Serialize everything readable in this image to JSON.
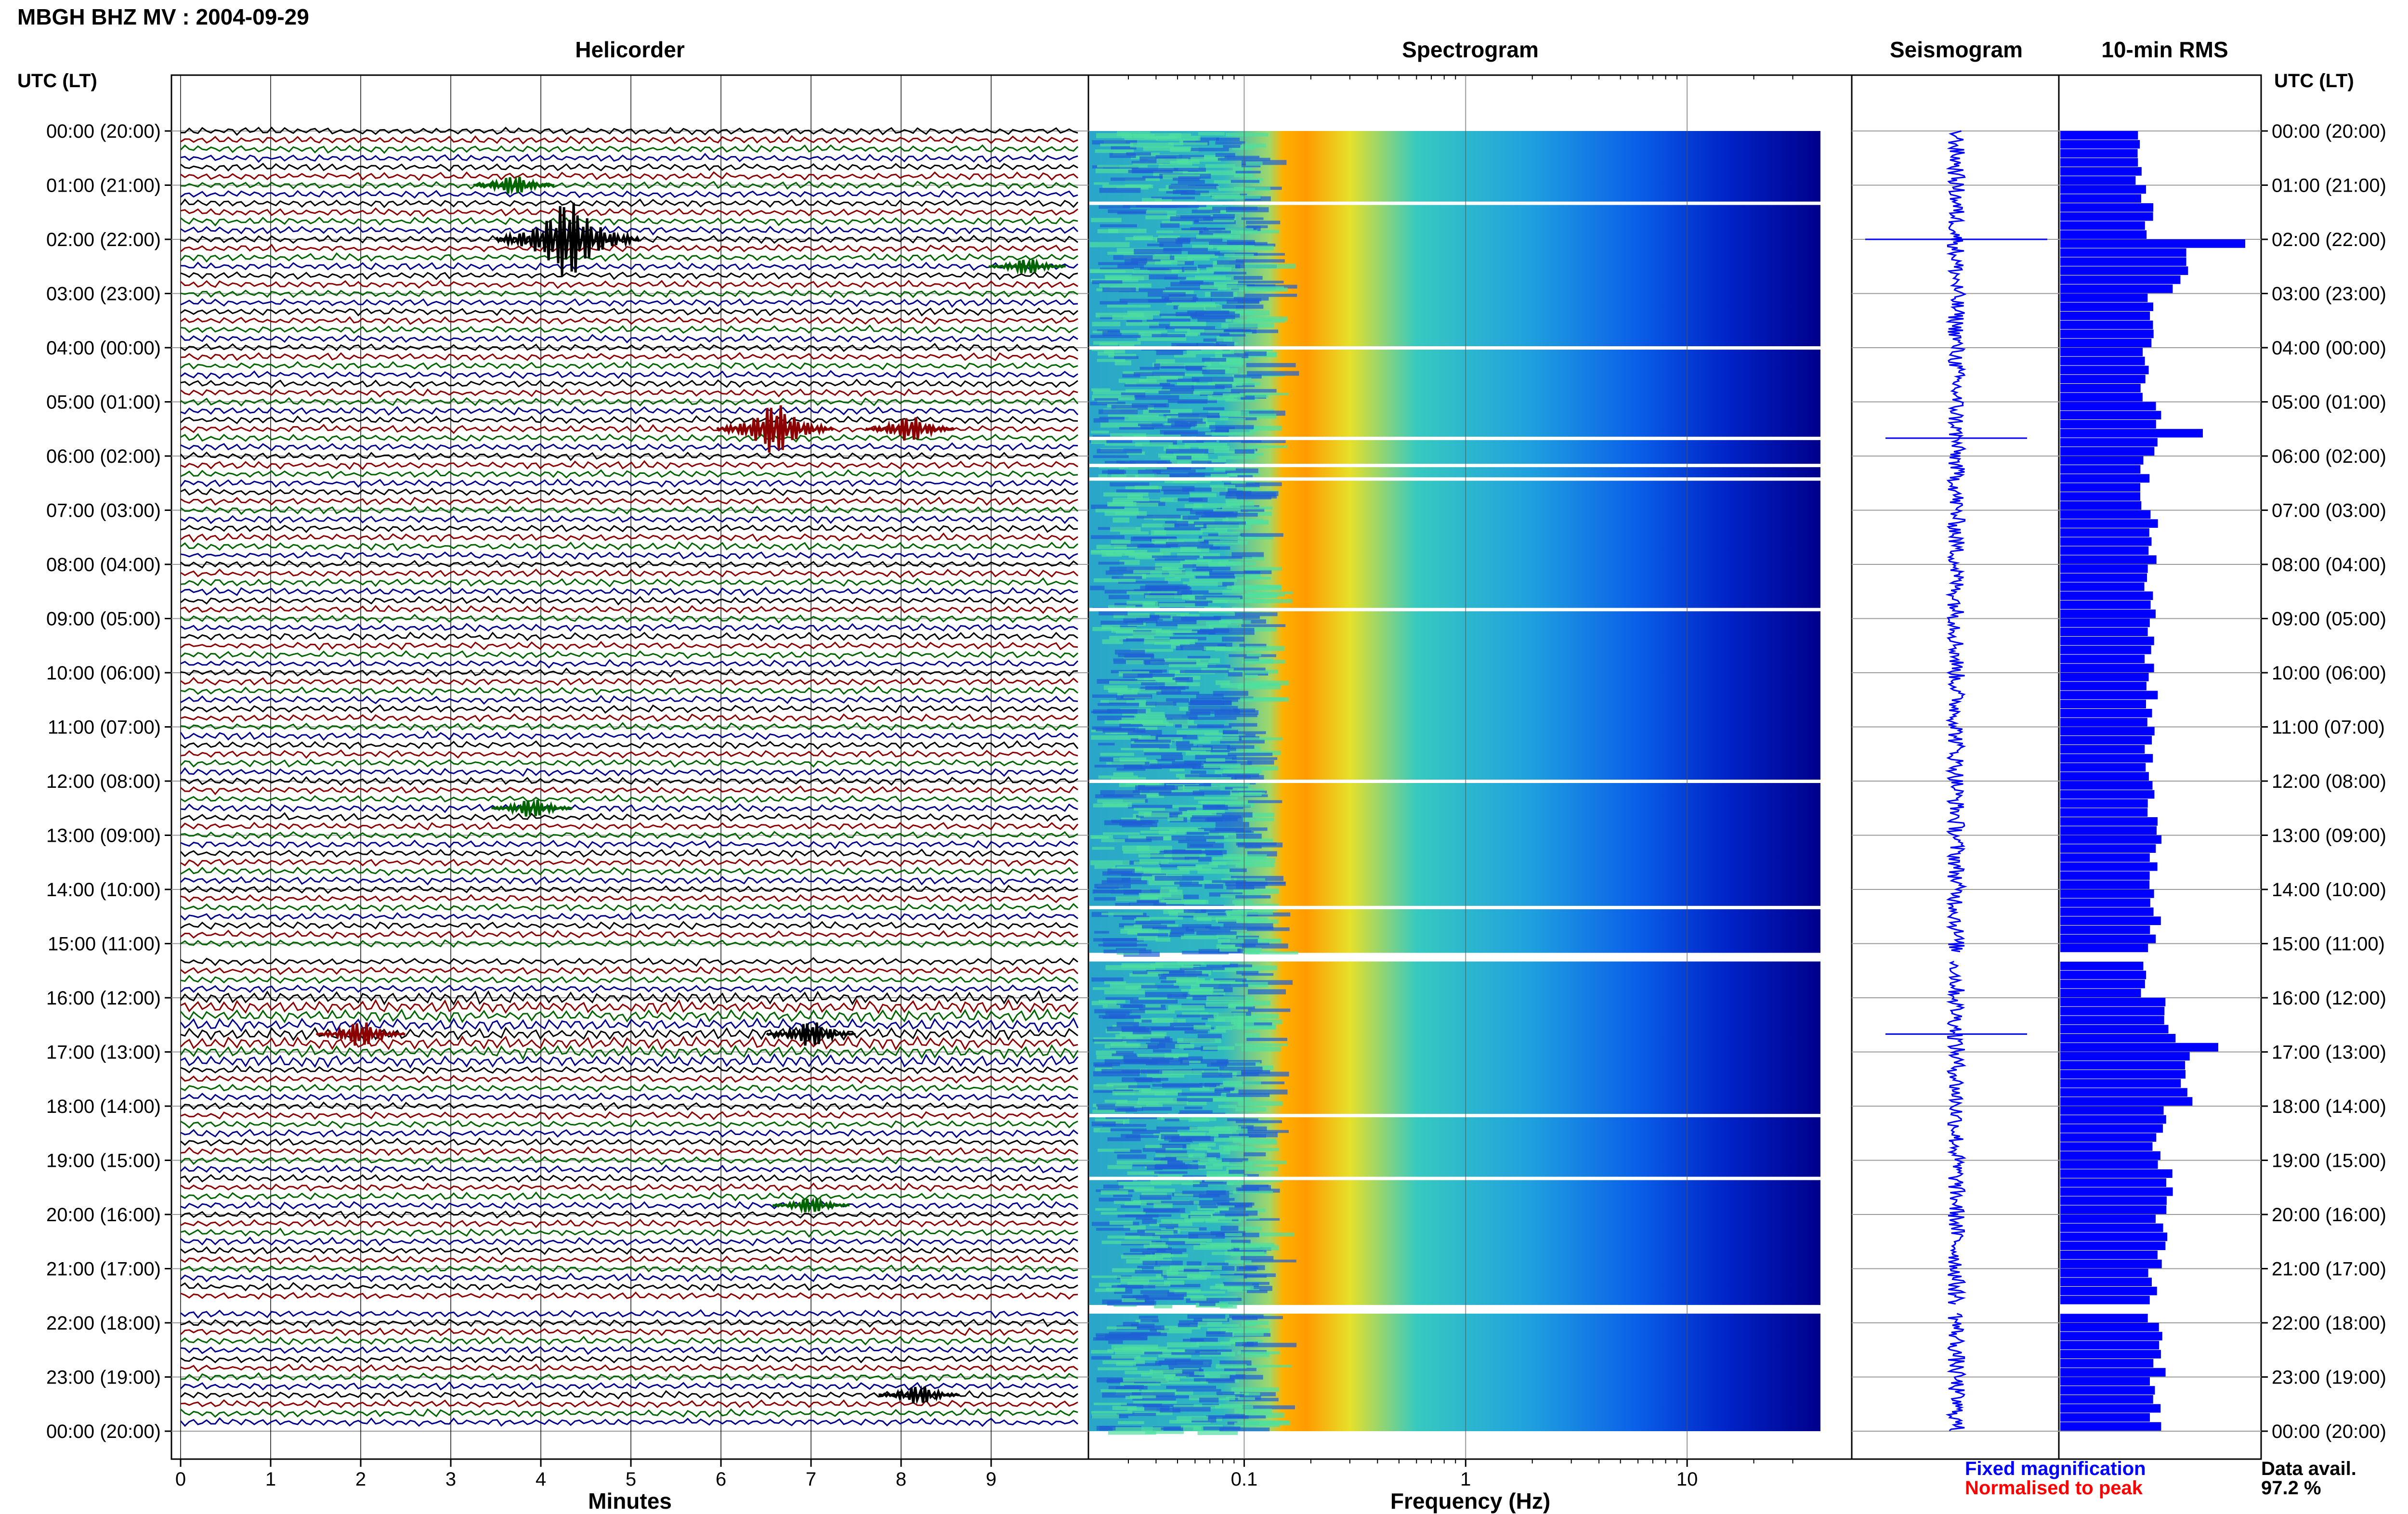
{
  "header": {
    "title": "MBGH BHZ MV : 2004-09-29",
    "utc_label": "UTC (LT)"
  },
  "panels": {
    "helicorder": "Helicorder",
    "spectrogram": "Spectrogram",
    "seismogram": "Seismogram",
    "rms": "10-min RMS"
  },
  "legend": {
    "fixed": "Fixed magnification",
    "normalised": "Normalised to peak",
    "avail_label": "Data avail.",
    "avail_value": "97.2 %"
  },
  "colors": {
    "trace_cycle": [
      "#000000",
      "#8b0000",
      "#006400",
      "#00008b"
    ],
    "rms_bar": "#0000ff",
    "seismo": "#0000ff",
    "spec_low": "#00008b",
    "spec_high": "#ff8c00"
  },
  "chart_data": [
    {
      "type": "line",
      "title": "Helicorder",
      "xlabel": "Minutes",
      "x_ticks": [
        "0",
        "1",
        "2",
        "3",
        "4",
        "5",
        "6",
        "7",
        "8",
        "9"
      ],
      "xlim": [
        0,
        10
      ],
      "y_ticks": [
        "00:00 (20:00)",
        "01:00 (21:00)",
        "02:00 (22:00)",
        "03:00 (23:00)",
        "04:00 (00:00)",
        "05:00 (01:00)",
        "06:00 (02:00)",
        "07:00 (03:00)",
        "08:00 (04:00)",
        "09:00 (05:00)",
        "10:00 (06:00)",
        "11:00 (07:00)",
        "12:00 (08:00)",
        "13:00 (09:00)",
        "14:00 (10:00)",
        "15:00 (11:00)",
        "16:00 (12:00)",
        "17:00 (13:00)",
        "18:00 (14:00)",
        "19:00 (15:00)",
        "20:00 (16:00)",
        "21:00 (17:00)",
        "22:00 (18:00)",
        "23:00 (19:00)",
        "00:00 (20:00)"
      ],
      "traces_per_hour": 6,
      "data_gaps_utc": [
        [
          15.17,
          15.33
        ],
        [
          21.67,
          21.83
        ]
      ],
      "events": [
        {
          "hour_utc": 1.0,
          "minute": 3.7,
          "amplitude": 0.6,
          "color": "green"
        },
        {
          "hour_utc": 2.0,
          "minute": 4.3,
          "amplitude": 2.2,
          "color": "black"
        },
        {
          "hour_utc": 2.5,
          "minute": 9.4,
          "amplitude": 0.5,
          "color": "green"
        },
        {
          "hour_utc": 5.5,
          "minute": 6.6,
          "amplitude": 1.5,
          "color": "red"
        },
        {
          "hour_utc": 5.5,
          "minute": 8.1,
          "amplitude": 0.8,
          "color": "red"
        },
        {
          "hour_utc": 12.5,
          "minute": 3.9,
          "amplitude": 0.6,
          "color": "green"
        },
        {
          "hour_utc": 16.67,
          "minute": 2.0,
          "amplitude": 0.8,
          "color": "red"
        },
        {
          "hour_utc": 16.67,
          "minute": 7.0,
          "amplitude": 0.8,
          "color": "black"
        },
        {
          "hour_utc": 19.83,
          "minute": 7.0,
          "amplitude": 0.5,
          "color": "green"
        },
        {
          "hour_utc": 23.33,
          "minute": 8.2,
          "amplitude": 0.6,
          "color": "black"
        }
      ]
    },
    {
      "type": "heatmap",
      "title": "Spectrogram",
      "xlabel": "Frequency (Hz)",
      "x_scale": "log",
      "xlim": [
        0.02,
        40
      ],
      "x_ticks": [
        {
          "value": 0.1,
          "label": "0.1"
        },
        {
          "value": 1,
          "label": "1"
        },
        {
          "value": 10,
          "label": "10"
        }
      ],
      "peak_band_hz": [
        0.15,
        0.3
      ],
      "high_energy_rows_utc": [
        1.33,
        4.0,
        5.67,
        6.17,
        6.42,
        8.83,
        12.0,
        14.33,
        18.17,
        19.33
      ]
    },
    {
      "type": "line",
      "title": "Seismogram",
      "spikes": [
        {
          "hour_utc": 2.0,
          "amplitude": 0.9
        },
        {
          "hour_utc": 5.67,
          "amplitude": 0.7
        },
        {
          "hour_utc": 16.67,
          "amplitude": 0.7
        }
      ]
    },
    {
      "type": "bar",
      "title": "10-min RMS",
      "orientation": "horizontal",
      "hours_utc": [
        0,
        1,
        2,
        3,
        4,
        5,
        6,
        7,
        8,
        9,
        10,
        11,
        12,
        13,
        14,
        15,
        16,
        17,
        18,
        19,
        20,
        21,
        22,
        23
      ],
      "hourly_rms": [
        0.42,
        0.45,
        0.62,
        0.48,
        0.44,
        0.52,
        0.45,
        0.47,
        0.46,
        0.47,
        0.47,
        0.47,
        0.48,
        0.49,
        0.49,
        0.45,
        0.58,
        0.64,
        0.52,
        0.55,
        0.52,
        0.48,
        0.52,
        0.5
      ],
      "peaks": [
        {
          "hour_utc": 2.0,
          "rms": 0.96
        },
        {
          "hour_utc": 5.5,
          "rms": 0.74
        },
        {
          "hour_utc": 16.83,
          "rms": 0.82
        }
      ],
      "gaps_utc": [
        [
          15.17,
          15.33
        ],
        [
          21.67,
          21.83
        ]
      ]
    }
  ]
}
